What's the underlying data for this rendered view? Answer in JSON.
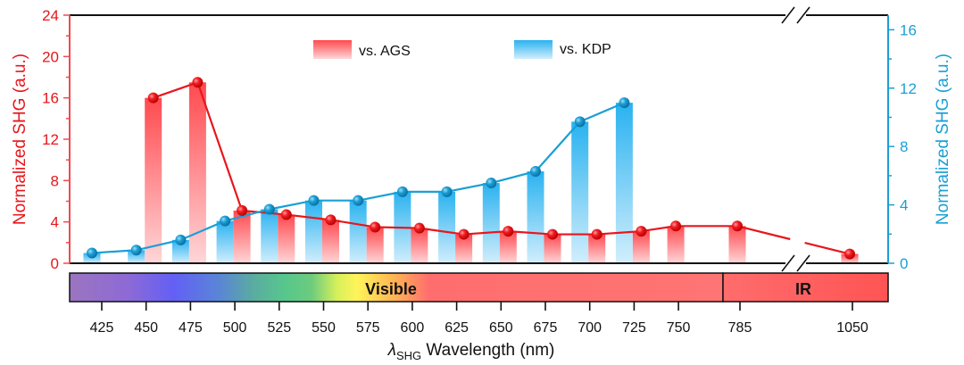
{
  "chart_data": {
    "type": "bar",
    "title": "",
    "xlabel": "λSHG Wavelength (nm)",
    "xlabel_main_symbol": "λ",
    "xlabel_subscript": "SHG",
    "xlabel_rest": " Wavelength (nm)",
    "ylabel_left": "Normalized SHG (a.u.)",
    "ylabel_right": "Normalized SHG (a.u.)",
    "ylim_left": [
      0,
      24
    ],
    "ylim_right": [
      0,
      17
    ],
    "yticks_left": [
      "0",
      "4",
      "8",
      "12",
      "16",
      "20",
      "24"
    ],
    "yticks_right": [
      "0",
      "4",
      "8",
      "12",
      "16"
    ],
    "categories": [
      "425",
      "450",
      "475",
      "500",
      "525",
      "550",
      "575",
      "600",
      "625",
      "650",
      "675",
      "700",
      "725",
      "750",
      "785",
      "1050"
    ],
    "axis_break": "between 785 and 1050",
    "legend": {
      "placement": "top-center",
      "entries": [
        "vs. AGS",
        "vs. KDP"
      ]
    },
    "series": [
      {
        "name": "vs. AGS",
        "axis": "left",
        "color": "#f0262b",
        "values": [
          null,
          16.0,
          17.5,
          5.1,
          4.7,
          4.2,
          3.5,
          3.4,
          2.8,
          3.1,
          2.8,
          2.8,
          3.1,
          3.6,
          3.6,
          0.9
        ]
      },
      {
        "name": "vs. KDP",
        "axis": "right",
        "color": "#1aa3dc",
        "values": [
          0.7,
          0.9,
          1.6,
          2.9,
          3.7,
          4.3,
          4.3,
          4.9,
          4.9,
          5.5,
          6.3,
          9.7,
          11.0,
          null,
          null,
          null
        ]
      }
    ],
    "spectrum_band": {
      "regions": [
        {
          "label": "Visible",
          "range": "425–775 nm"
        },
        {
          "label": "IR",
          "range": "775–1050+ nm"
        }
      ]
    }
  }
}
